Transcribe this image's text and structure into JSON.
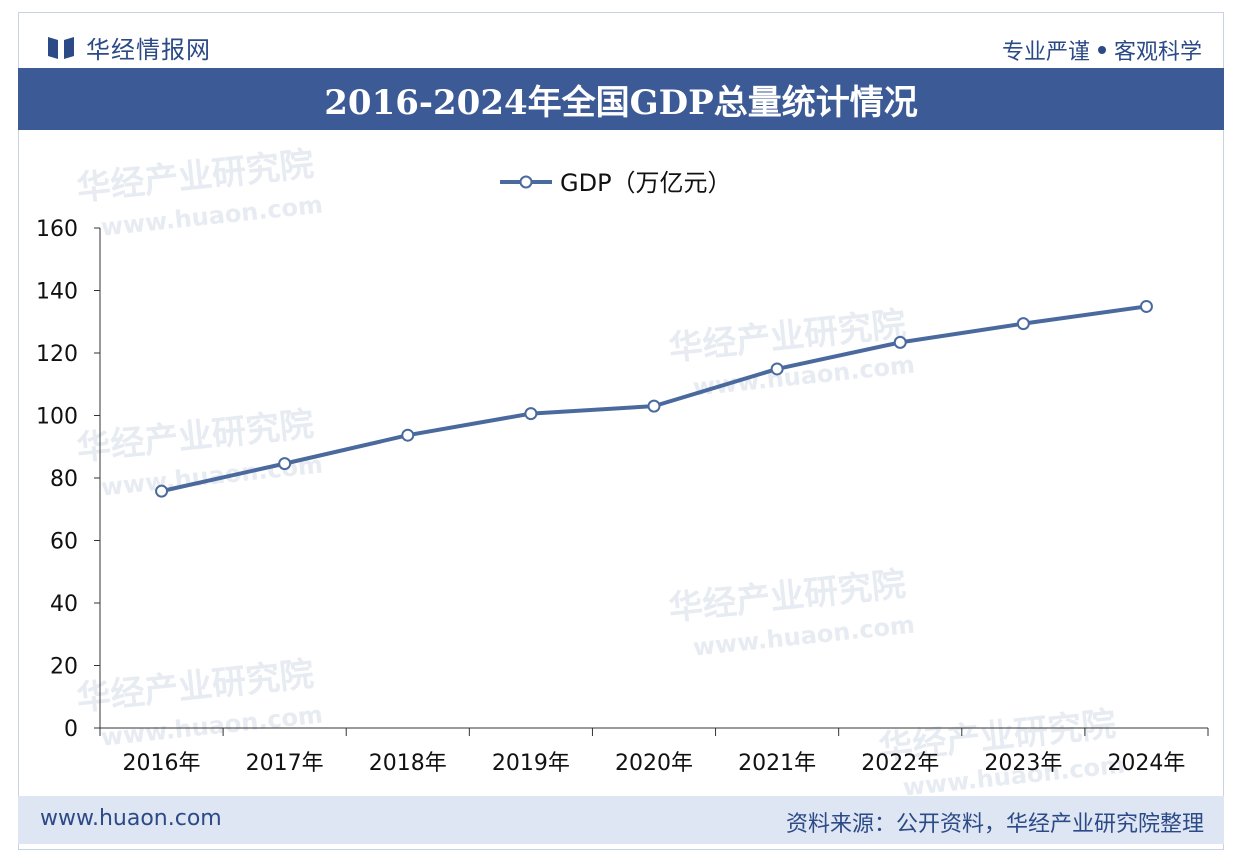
{
  "header": {
    "brand": "华经情报网",
    "slogan_left": "专业严谨",
    "slogan_right": "客观科学",
    "title": "2016-2024年全国GDP总量统计情况"
  },
  "watermark": {
    "text": "华经产业研究院",
    "url": "www.huaon.com"
  },
  "footer": {
    "url": "www.huaon.com",
    "source": "资料来源：公开资料，华经产业研究院整理"
  },
  "colors": {
    "title_band": "#3b5a96",
    "line": "#4a6a9e",
    "text_brand": "#2c4a86",
    "footer_bg": "#dfe6f3"
  },
  "chart_data": {
    "type": "line",
    "x": [
      "2016年",
      "2017年",
      "2018年",
      "2019年",
      "2020年",
      "2021年",
      "2022年",
      "2023年",
      "2024年"
    ],
    "series": [
      {
        "name": "GDP（万亿元）",
        "values": [
          75.8,
          84.6,
          93.7,
          100.6,
          103.0,
          114.9,
          123.4,
          129.4,
          134.9
        ]
      }
    ],
    "ylim": [
      0,
      160
    ],
    "yticks": [
      "0",
      "20",
      "40",
      "60",
      "80",
      "100",
      "120",
      "140",
      "160"
    ],
    "legend": "top-center",
    "grid": false
  }
}
